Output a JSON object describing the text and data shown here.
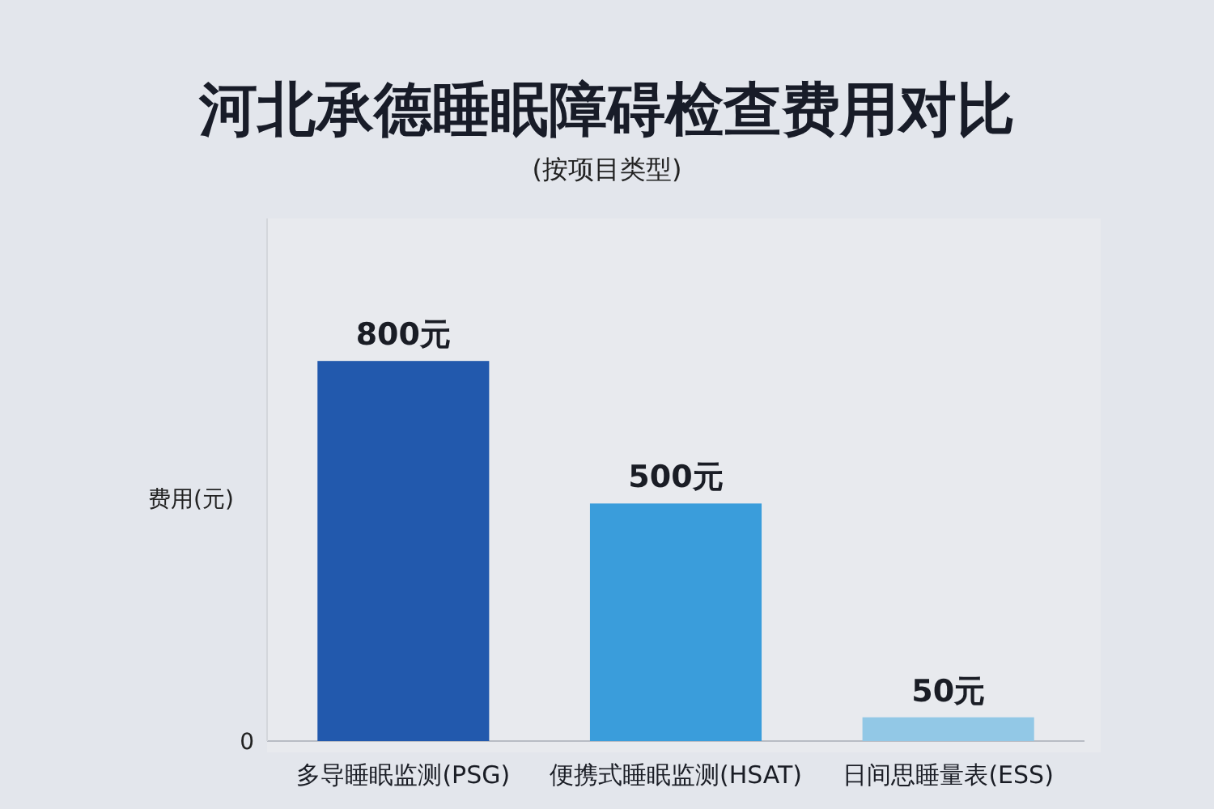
{
  "chart_data": {
    "type": "bar",
    "title": "河北承德睡眠障碍检查费用对比",
    "subtitle": "(按项目类型)",
    "ylabel": "费用(元)",
    "categories": [
      "多导睡眠监测(PSG)",
      "便携式睡眠监测(HSAT)",
      "日间思睡量表(ESS)"
    ],
    "values": [
      800,
      500,
      50
    ],
    "colors": [
      "#2259ad",
      "#3a9ddb",
      "#92c8e6"
    ],
    "value_labels": [
      "800元",
      "500元",
      "50元"
    ],
    "annotations": [
      "0"
    ]
  }
}
